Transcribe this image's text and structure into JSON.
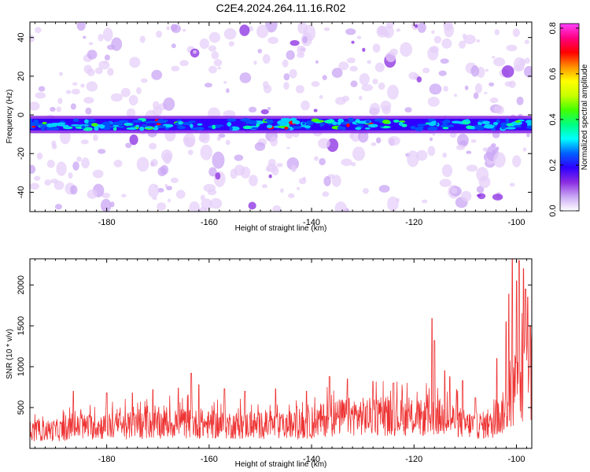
{
  "title": "C2E4.2024.264.11.16.R02",
  "chart_data": [
    {
      "type": "heatmap",
      "name": "spectrogram",
      "xlabel": "Height of straight line (km)",
      "ylabel": "Frequency (Hz)",
      "xlim": [
        -195,
        -97
      ],
      "ylim": [
        -50,
        48
      ],
      "xticks": [
        -180,
        -160,
        -140,
        -120,
        -100
      ],
      "yticks": [
        -40,
        -20,
        0,
        20,
        40
      ],
      "band_center_hz": -5,
      "band_width_hz": 6,
      "colorbar": {
        "label": "Normalized spectral amplitude",
        "range": [
          0.0,
          0.82
        ],
        "ticks": [
          0.0,
          0.2,
          0.4,
          0.6,
          0.8
        ],
        "ticklabels": [
          "0.0",
          "0.2",
          "0.4",
          "0.6",
          "0.8"
        ]
      },
      "colors": [
        "#ffffff",
        "#e6cff8",
        "#c9a6f4",
        "#8a2be2",
        "#2f00ff",
        "#0050ff",
        "#00d0ff",
        "#00ffb0",
        "#44ff00",
        "#c8ff00",
        "#ffff00",
        "#ff9000",
        "#ff0000",
        "#ff0080",
        "#ff40ff"
      ]
    },
    {
      "type": "line",
      "name": "snr",
      "xlabel": "Height of straight line (km)",
      "ylabel": "SNR (10 * v/v)",
      "xlim": [
        -195,
        -97
      ],
      "ylim": [
        0,
        2320
      ],
      "xticks": [
        -180,
        -160,
        -140,
        -120,
        -100
      ],
      "yticks": [
        500,
        1000,
        1500,
        2000
      ],
      "color": "#ee3333",
      "series_profile": [
        [
          -195,
          240
        ],
        [
          -188,
          260
        ],
        [
          -185,
          300
        ],
        [
          -175,
          320
        ],
        [
          -165,
          350
        ],
        [
          -160,
          330
        ],
        [
          -150,
          320
        ],
        [
          -145,
          310
        ],
        [
          -140,
          330
        ],
        [
          -138,
          400
        ],
        [
          -133,
          450
        ],
        [
          -125,
          440
        ],
        [
          -118,
          420
        ],
        [
          -115,
          440
        ],
        [
          -112,
          400
        ],
        [
          -110,
          330
        ],
        [
          -105,
          320
        ],
        [
          -103,
          450
        ],
        [
          -101,
          700
        ],
        [
          -99.5,
          900
        ],
        [
          -98,
          950
        ],
        [
          -97,
          900
        ]
      ],
      "spikes": [
        [
          -186.5,
          700
        ],
        [
          -180,
          680
        ],
        [
          -175,
          680
        ],
        [
          -171,
          720
        ],
        [
          -166,
          740
        ],
        [
          -163.5,
          920
        ],
        [
          -162,
          780
        ],
        [
          -157,
          730
        ],
        [
          -153,
          700
        ],
        [
          -147,
          730
        ],
        [
          -141,
          700
        ],
        [
          -136.5,
          880
        ],
        [
          -133,
          850
        ],
        [
          -128,
          820
        ],
        [
          -124,
          800
        ],
        [
          -116.5,
          1590
        ],
        [
          -116,
          1320
        ],
        [
          -114,
          950
        ],
        [
          -113,
          880
        ],
        [
          -110.5,
          830
        ],
        [
          -108,
          620
        ],
        [
          -103.8,
          1100
        ],
        [
          -102,
          1550
        ],
        [
          -101.5,
          1890
        ],
        [
          -100.8,
          2320
        ],
        [
          -100,
          2050
        ],
        [
          -99.5,
          2300
        ],
        [
          -98.6,
          2200
        ],
        [
          -98.2,
          1950
        ],
        [
          -97.8,
          1850
        ],
        [
          -97.3,
          1500
        ]
      ]
    }
  ]
}
